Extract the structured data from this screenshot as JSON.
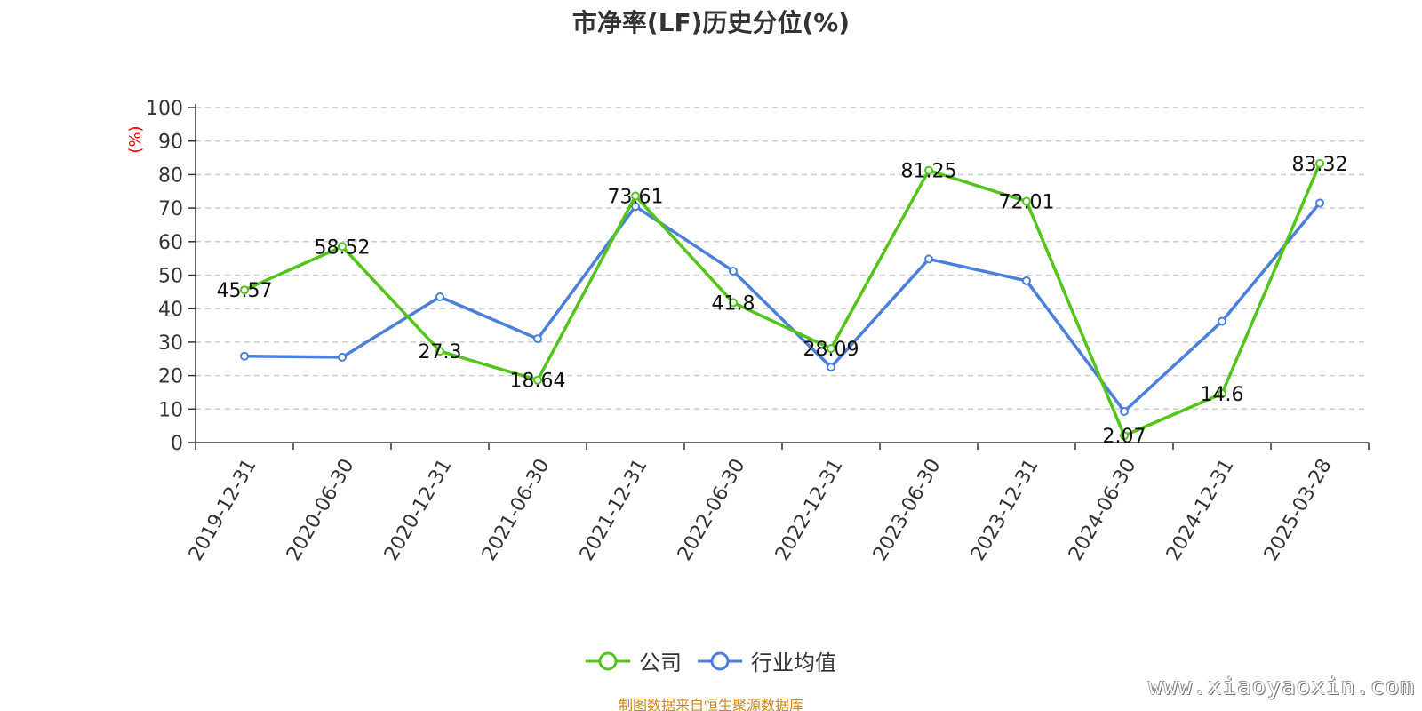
{
  "chart_data": {
    "type": "line",
    "title": "市净率(LF)历史分位(%)",
    "ylabel": "(%)",
    "ylim": [
      0,
      100
    ],
    "yticks": [
      0,
      10,
      20,
      30,
      40,
      50,
      60,
      70,
      80,
      90,
      100
    ],
    "grid": true,
    "legend_position": "bottom-center",
    "categories": [
      "2019-12-31",
      "2020-06-30",
      "2020-12-31",
      "2021-06-30",
      "2021-12-31",
      "2022-06-30",
      "2022-12-31",
      "2023-06-30",
      "2023-12-31",
      "2024-06-30",
      "2024-12-31",
      "2025-03-28"
    ],
    "series": [
      {
        "name": "公司",
        "color": "#52c41a",
        "values": [
          45.57,
          58.52,
          27.3,
          18.64,
          73.61,
          41.8,
          28.09,
          81.25,
          72.01,
          2.07,
          14.6,
          83.32
        ],
        "labels": [
          "45.57",
          "58.52",
          "27.3",
          "18.64",
          "73.61",
          "41.8",
          "28.09",
          "81.25",
          "72.01",
          "2.07",
          "14.6",
          "83.32"
        ]
      },
      {
        "name": "行业均值",
        "color": "#4a7fdb",
        "values": [
          25.8,
          25.5,
          43.5,
          31.0,
          70.5,
          51.2,
          22.5,
          54.8,
          48.3,
          9.3,
          36.2,
          71.5
        ]
      }
    ]
  },
  "source_note": "制图数据来自恒生聚源数据库",
  "watermark": "www.xiaoyaoxin.com",
  "ylabel_color": "#ff0000"
}
